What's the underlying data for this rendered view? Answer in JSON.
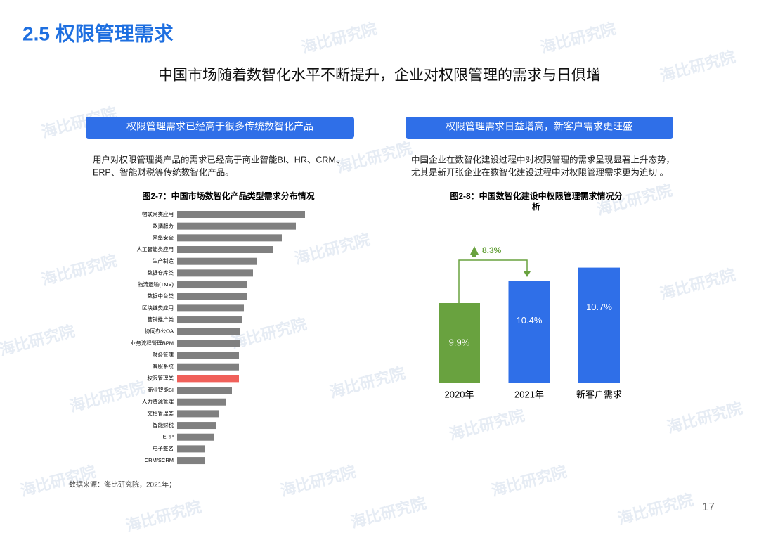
{
  "header": {
    "title": "2.5 权限管理需求",
    "subtitle": "中国市场随着数智化水平不断提升，企业对权限管理的需求与日俱增"
  },
  "watermark": "海比研究院",
  "left": {
    "banner": "权限管理需求已经高于很多传统数智化产品",
    "text": [
      "用户对权限管理类产品的需求已经高于商业智能BI、HR、CRM、",
      "ERP、智能财税等传统数智化产品。"
    ],
    "chart_data": {
      "type": "hbar",
      "title": "图2-7：中国市场数智化产品类型需求分布情况",
      "categories": [
        "物联网类应用",
        "数据服务",
        "网络安全",
        "人工智能类应用",
        "生产制造",
        "数据仓库类",
        "物流运输(TMS)",
        "数据中台类",
        "区块链类应用",
        "营销推广类",
        "协同办公OA",
        "业务流程管理BPM",
        "财务管理",
        "客服系统",
        "权限管理类",
        "商业智能BI",
        "人力资源管理",
        "文档管理类",
        "智能财税",
        "ERP",
        "电子签名",
        "CRM/SCRM"
      ],
      "values": [
        182,
        169,
        149,
        136,
        113,
        108,
        100,
        100,
        95,
        92,
        90,
        89,
        88,
        88,
        88,
        78,
        70,
        60,
        55,
        52,
        40,
        40
      ],
      "color": "#808080",
      "highlight": {
        "index": 14,
        "color": "#f0605a"
      }
    }
  },
  "right": {
    "banner": "权限管理需求日益增高，新客户需求更旺盛",
    "text": [
      "中国企业在数智化建设过程中对权限管理的需求呈现显著上升态势，",
      "尤其是新开张企业在数智化建设过程中对权限管理需求更为迫切 。"
    ],
    "chart_data": {
      "type": "bar",
      "title": [
        "图2-8：中国数智化建设中权限管理需求情况分",
        "析"
      ],
      "categories": [
        "2020年",
        "2021年",
        "新客户需求"
      ],
      "values": [
        9.9,
        10.4,
        10.7
      ],
      "value_labels": [
        "9.9%",
        "10.4%",
        "10.7%"
      ],
      "colors": [
        "#69a23f",
        "#2f6fe8",
        "#2f6fe8"
      ],
      "annotation": "8.3%"
    }
  },
  "source": "数据来源：海比研究院，2021年；",
  "page_number": "17"
}
